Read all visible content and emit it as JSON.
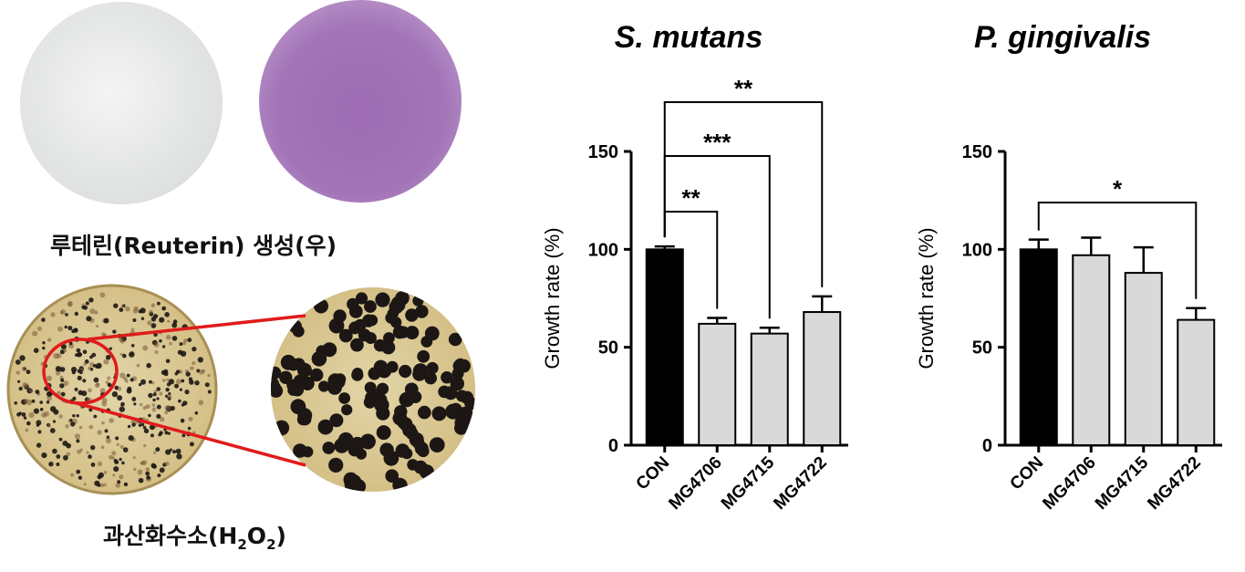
{
  "captions": {
    "reuterin": "루테린(Reuterin) 생성(우)",
    "h2o2_prefix": "과산화수소(H",
    "h2o2_sub1": "2",
    "h2o2_mid": "O",
    "h2o2_sub2": "2",
    "h2o2_suffix": ")"
  },
  "colors": {
    "plate_white": "#e9ebea",
    "plate_purple": "#a171b6",
    "agar": "#d9c48f",
    "colony": "#1c1714",
    "zoom_line": "#e01b1b",
    "bar_con": "#000000",
    "bar_other": "#d9d9d9"
  },
  "chart_data": [
    {
      "type": "bar",
      "title": "S. mutans",
      "ylabel": "Growth rate (%)",
      "ylim": [
        0,
        150
      ],
      "yticks": [
        "0",
        "50",
        "100",
        "150"
      ],
      "categories": [
        "CON",
        "MG4706",
        "MG4715",
        "MG4722"
      ],
      "values": [
        100,
        62,
        57,
        68
      ],
      "errors": [
        1.5,
        3,
        3,
        8
      ],
      "significance": [
        {
          "from": 0,
          "to": 1,
          "label": "**",
          "level": 0
        },
        {
          "from": 0,
          "to": 2,
          "label": "***",
          "level": 1
        },
        {
          "from": 0,
          "to": 3,
          "label": "**",
          "level": 2
        }
      ]
    },
    {
      "type": "bar",
      "title": "P. gingivalis",
      "ylabel": "Growth rate (%)",
      "ylim": [
        0,
        150
      ],
      "yticks": [
        "0",
        "50",
        "100",
        "150"
      ],
      "categories": [
        "CON",
        "MG4706",
        "MG4715",
        "MG4722"
      ],
      "values": [
        100,
        97,
        88,
        64
      ],
      "errors": [
        5,
        9,
        13,
        6
      ],
      "significance": [
        {
          "from": 0,
          "to": 3,
          "label": "*",
          "level": 0
        }
      ]
    }
  ]
}
